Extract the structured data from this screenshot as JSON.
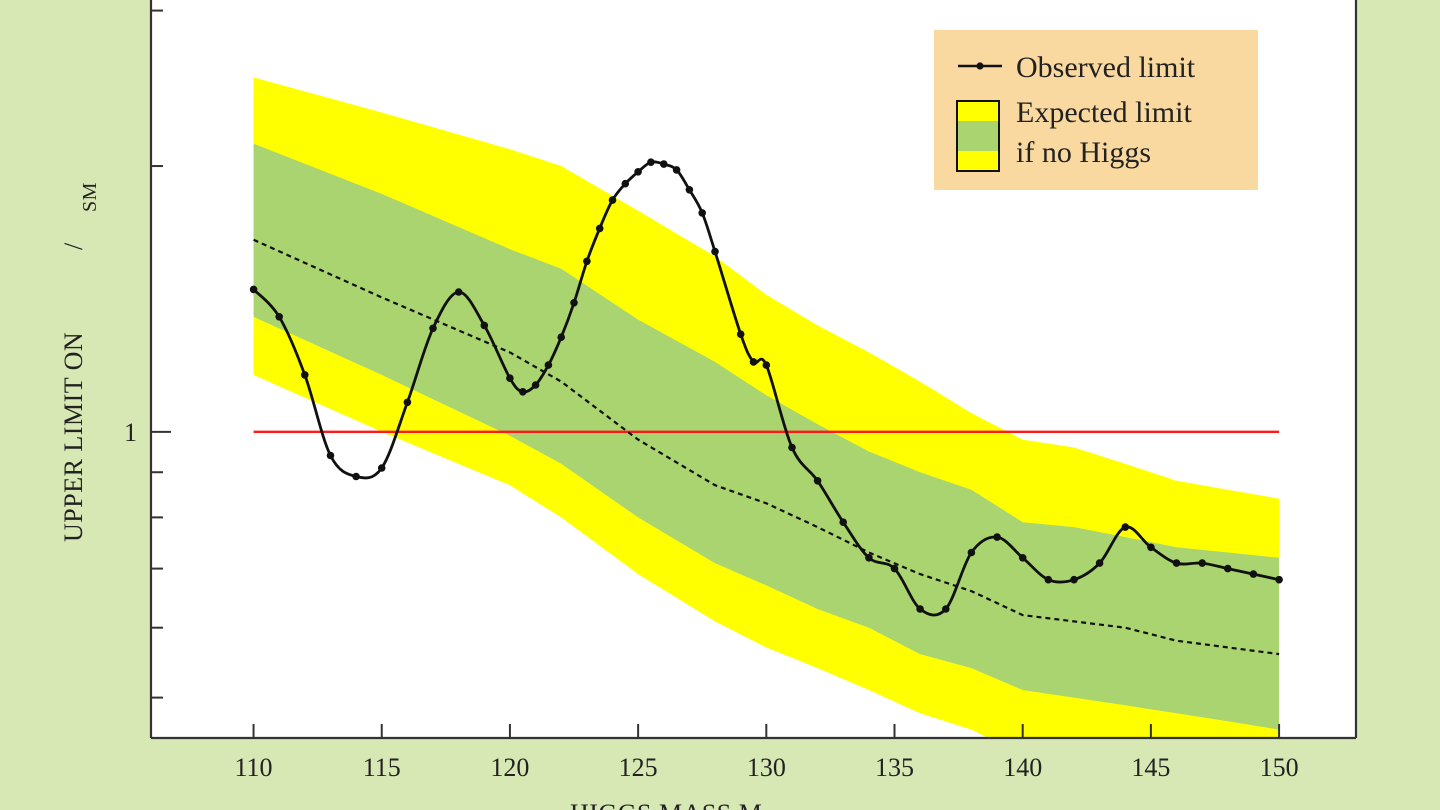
{
  "chart_data": {
    "type": "line",
    "xlabel": "HIGGS MASS M",
    "ylabel": "UPPER LIMIT ON",
    "ylabel_sub": "SM",
    "xlim": [
      106,
      153
    ],
    "ylim": [
      0.45,
      3.1
    ],
    "y_scale": "log",
    "x_ticks": [
      110,
      115,
      120,
      125,
      130,
      135,
      140,
      145,
      150
    ],
    "y_tick_labels": [
      {
        "value": 1,
        "label": "1"
      }
    ],
    "y_minor_ticks": [
      0.5,
      0.6,
      0.7,
      0.8,
      0.9,
      2,
      3
    ],
    "grid": false,
    "legend_position": "top-right",
    "legend": {
      "observed": "Observed limit",
      "expected_line1": "Expected limit",
      "expected_line2": "if no Higgs"
    },
    "reference_line": {
      "y": 1,
      "color": "#ff1a1a"
    },
    "colors": {
      "yellow_band": "#ffff00",
      "green_band": "#a9d46f",
      "observed": "#111111",
      "expected": "#111111",
      "legend_bg": "#fad9a0",
      "plot_bg": "#ffffff",
      "page_bg": "#d8e8b4"
    },
    "series": [
      {
        "name": "Observed limit",
        "style": "line-markers",
        "x": [
          110,
          111,
          112,
          113,
          114,
          115,
          116,
          117,
          118,
          119,
          120,
          120.5,
          121,
          121.5,
          122,
          122.5,
          123,
          123.5,
          124,
          124.5,
          125,
          125.5,
          126,
          126.5,
          127,
          127.5,
          128,
          129,
          129.5,
          130,
          131,
          132,
          133,
          134,
          135,
          136,
          137,
          138,
          139,
          140,
          141,
          142,
          143,
          144,
          145,
          146,
          147,
          148,
          149,
          150
        ],
        "y": [
          1.45,
          1.35,
          1.16,
          0.94,
          0.89,
          0.91,
          1.08,
          1.31,
          1.44,
          1.32,
          1.15,
          1.11,
          1.13,
          1.19,
          1.28,
          1.4,
          1.56,
          1.7,
          1.83,
          1.91,
          1.97,
          2.02,
          2.01,
          1.98,
          1.88,
          1.77,
          1.6,
          1.29,
          1.2,
          1.19,
          0.96,
          0.88,
          0.79,
          0.72,
          0.7,
          0.63,
          0.63,
          0.73,
          0.76,
          0.72,
          0.68,
          0.68,
          0.71,
          0.78,
          0.74,
          0.71,
          0.71,
          0.7,
          0.69,
          0.68
        ]
      },
      {
        "name": "Expected limit",
        "style": "dashed",
        "x": [
          110,
          115,
          120,
          122,
          125,
          128,
          130,
          132,
          134,
          136,
          138,
          140,
          142,
          144,
          146,
          148,
          150
        ],
        "median": [
          1.65,
          1.42,
          1.23,
          1.14,
          0.98,
          0.87,
          0.83,
          0.78,
          0.73,
          0.69,
          0.66,
          0.62,
          0.61,
          0.6,
          0.58,
          0.57,
          0.56
        ],
        "green_low": [
          1.35,
          1.16,
          0.99,
          0.92,
          0.8,
          0.71,
          0.67,
          0.63,
          0.6,
          0.56,
          0.54,
          0.51,
          0.5,
          0.49,
          0.48,
          0.47,
          0.46
        ],
        "green_high": [
          2.12,
          1.86,
          1.61,
          1.53,
          1.34,
          1.2,
          1.1,
          1.02,
          0.95,
          0.9,
          0.86,
          0.79,
          0.78,
          0.76,
          0.74,
          0.73,
          0.72
        ],
        "yellow_low": [
          1.16,
          1.0,
          0.87,
          0.8,
          0.69,
          0.61,
          0.57,
          0.54,
          0.51,
          0.48,
          0.46,
          0.43,
          0.42,
          0.41,
          0.4,
          0.39,
          0.38
        ],
        "yellow_high": [
          2.52,
          2.3,
          2.09,
          2.0,
          1.78,
          1.58,
          1.43,
          1.32,
          1.23,
          1.14,
          1.05,
          0.98,
          0.96,
          0.92,
          0.88,
          0.86,
          0.84
        ]
      }
    ]
  }
}
